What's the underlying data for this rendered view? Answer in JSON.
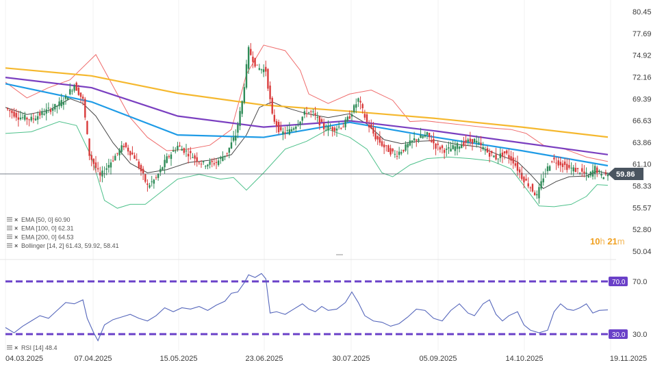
{
  "colors": {
    "up": "#2e8b57",
    "down": "#d93a3a",
    "ema50": "#1e9be6",
    "ema100": "#7a3fc0",
    "ema200": "#f5b82e",
    "bollinger_upper": "#ef6b6b",
    "bollinger_lower": "#4cc08a",
    "bollinger_mid": "#444444",
    "rsi": "#5566bb",
    "rsi_levels": "#6a40c8",
    "price_marker": "#4a5560"
  },
  "timer": {
    "hours": "10",
    "h": "h",
    "minutes": "21",
    "m": "m"
  },
  "legend": [
    {
      "label": "EMA [50, 0] 60.90"
    },
    {
      "label": "EMA [100, 0] 62.31"
    },
    {
      "label": "EMA [200, 0] 64.53"
    },
    {
      "label": "Bollinger [14, 2] 61.43, 59.92, 58.41"
    }
  ],
  "rsi_legend": "RSI [14] 48.4",
  "chart_data": [
    {
      "type": "candlestick",
      "y_ticks": [
        "80.45",
        "77.69",
        "74.92",
        "72.16",
        "69.39",
        "66.63",
        "63.86",
        "61.10",
        "58.33",
        "55.57",
        "52.80",
        "50.04"
      ],
      "ylim": [
        50.04,
        80.45
      ],
      "x_ticks": [
        "04.03.2025",
        "07.04.2025",
        "15.05.2025",
        "23.06.2025",
        "30.07.2025",
        "05.09.2025",
        "14.10.2025",
        "19.11.2025"
      ],
      "last_price": "59.86",
      "close_anchors": [
        [
          0,
          68.2
        ],
        [
          6,
          67.1
        ],
        [
          12,
          66.8
        ],
        [
          18,
          67.7
        ],
        [
          24,
          68.5
        ],
        [
          28,
          69.5
        ],
        [
          32,
          71.2
        ],
        [
          36,
          69.2
        ],
        [
          39,
          62.3
        ],
        [
          44,
          59.5
        ],
        [
          50,
          61.8
        ],
        [
          55,
          63.5
        ],
        [
          60,
          62.0
        ],
        [
          63,
          60.2
        ],
        [
          66,
          58.3
        ],
        [
          70,
          59.3
        ],
        [
          75,
          61.8
        ],
        [
          80,
          63.4
        ],
        [
          86,
          62.3
        ],
        [
          92,
          61.1
        ],
        [
          98,
          61.3
        ],
        [
          103,
          62.6
        ],
        [
          107,
          64.8
        ],
        [
          110,
          69.0
        ],
        [
          113,
          75.6
        ],
        [
          117,
          73.3
        ],
        [
          121,
          73.0
        ],
        [
          124,
          67.2
        ],
        [
          128,
          65.0
        ],
        [
          132,
          65.3
        ],
        [
          136,
          66.4
        ],
        [
          140,
          67.8
        ],
        [
          143,
          67.5
        ],
        [
          148,
          65.7
        ],
        [
          152,
          65.6
        ],
        [
          157,
          66.0
        ],
        [
          160,
          67.2
        ],
        [
          164,
          69.3
        ],
        [
          168,
          66.4
        ],
        [
          172,
          64.5
        ],
        [
          176,
          63.3
        ],
        [
          181,
          62.3
        ],
        [
          185,
          63.0
        ],
        [
          190,
          64.2
        ],
        [
          196,
          64.8
        ],
        [
          200,
          63.4
        ],
        [
          205,
          62.8
        ],
        [
          210,
          63.4
        ],
        [
          214,
          63.9
        ],
        [
          218,
          64.1
        ],
        [
          223,
          62.8
        ],
        [
          228,
          61.9
        ],
        [
          232,
          62.5
        ],
        [
          236,
          61.5
        ],
        [
          240,
          59.5
        ],
        [
          244,
          58.2
        ],
        [
          247,
          57.0
        ],
        [
          250,
          59.5
        ],
        [
          254,
          61.7
        ],
        [
          258,
          61.2
        ],
        [
          262,
          60.6
        ],
        [
          267,
          60.2
        ],
        [
          271,
          59.5
        ],
        [
          274,
          60.6
        ],
        [
          277,
          59.6
        ],
        [
          280,
          59.86
        ]
      ],
      "ema50": [
        [
          0,
          71.3
        ],
        [
          40,
          69.0
        ],
        [
          80,
          64.8
        ],
        [
          120,
          64.5
        ],
        [
          160,
          66.4
        ],
        [
          200,
          64.5
        ],
        [
          240,
          62.8
        ],
        [
          280,
          60.9
        ]
      ],
      "ema100": [
        [
          0,
          72.1
        ],
        [
          40,
          70.8
        ],
        [
          80,
          67.2
        ],
        [
          120,
          65.8
        ],
        [
          160,
          66.6
        ],
        [
          200,
          65.3
        ],
        [
          240,
          63.8
        ],
        [
          280,
          62.31
        ]
      ],
      "ema200": [
        [
          0,
          73.3
        ],
        [
          40,
          72.3
        ],
        [
          80,
          70.1
        ],
        [
          120,
          68.6
        ],
        [
          160,
          67.8
        ],
        [
          200,
          66.9
        ],
        [
          240,
          65.8
        ],
        [
          280,
          64.53
        ]
      ],
      "bollinger_upper": [
        [
          0,
          71.5
        ],
        [
          10,
          69.5
        ],
        [
          20,
          70.8
        ],
        [
          30,
          71.8
        ],
        [
          42,
          75.0
        ],
        [
          50,
          71.0
        ],
        [
          58,
          67.0
        ],
        [
          66,
          64.5
        ],
        [
          75,
          62.8
        ],
        [
          85,
          63.0
        ],
        [
          95,
          63.5
        ],
        [
          105,
          65.5
        ],
        [
          112,
          72.5
        ],
        [
          120,
          76.2
        ],
        [
          130,
          75.5
        ],
        [
          137,
          73.0
        ],
        [
          141,
          70.0
        ],
        [
          150,
          68.8
        ],
        [
          160,
          70.0
        ],
        [
          170,
          70.5
        ],
        [
          180,
          69.2
        ],
        [
          188,
          66.5
        ],
        [
          195,
          66.6
        ],
        [
          205,
          66.3
        ],
        [
          215,
          66.0
        ],
        [
          225,
          65.7
        ],
        [
          235,
          65.5
        ],
        [
          242,
          65.0
        ],
        [
          250,
          63.5
        ],
        [
          260,
          63.0
        ],
        [
          270,
          62.0
        ],
        [
          280,
          61.43
        ]
      ],
      "bollinger_lower": [
        [
          0,
          65.0
        ],
        [
          12,
          65.2
        ],
        [
          25,
          66.5
        ],
        [
          33,
          66.0
        ],
        [
          40,
          62.0
        ],
        [
          46,
          56.5
        ],
        [
          52,
          55.5
        ],
        [
          58,
          56.0
        ],
        [
          65,
          56.0
        ],
        [
          72,
          57.5
        ],
        [
          80,
          59.2
        ],
        [
          90,
          59.8
        ],
        [
          100,
          59.2
        ],
        [
          106,
          59.4
        ],
        [
          112,
          57.8
        ],
        [
          120,
          60.0
        ],
        [
          130,
          63.0
        ],
        [
          140,
          64.0
        ],
        [
          150,
          65.5
        ],
        [
          160,
          64.5
        ],
        [
          168,
          63.0
        ],
        [
          175,
          60.0
        ],
        [
          180,
          59.5
        ],
        [
          188,
          61.0
        ],
        [
          196,
          61.8
        ],
        [
          206,
          62.0
        ],
        [
          216,
          61.8
        ],
        [
          226,
          61.5
        ],
        [
          235,
          60.5
        ],
        [
          242,
          58.0
        ],
        [
          248,
          55.8
        ],
        [
          255,
          55.7
        ],
        [
          263,
          56.0
        ],
        [
          270,
          57.0
        ],
        [
          275,
          58.5
        ],
        [
          280,
          58.41
        ]
      ],
      "bollinger_mid": [
        [
          0,
          68.3
        ],
        [
          10,
          67.4
        ],
        [
          20,
          67.9
        ],
        [
          30,
          69.4
        ],
        [
          36,
          68.8
        ],
        [
          42,
          67.2
        ],
        [
          50,
          63.8
        ],
        [
          58,
          61.2
        ],
        [
          66,
          60.0
        ],
        [
          75,
          60.4
        ],
        [
          85,
          61.3
        ],
        [
          95,
          61.6
        ],
        [
          105,
          62.3
        ],
        [
          112,
          64.8
        ],
        [
          118,
          68.3
        ],
        [
          124,
          69.0
        ],
        [
          130,
          68.3
        ],
        [
          140,
          67.5
        ],
        [
          150,
          67.0
        ],
        [
          160,
          67.5
        ],
        [
          168,
          66.2
        ],
        [
          176,
          64.2
        ],
        [
          184,
          63.7
        ],
        [
          192,
          64.0
        ],
        [
          200,
          64.1
        ],
        [
          210,
          63.6
        ],
        [
          220,
          63.3
        ],
        [
          230,
          62.2
        ],
        [
          238,
          61.4
        ],
        [
          244,
          59.8
        ],
        [
          250,
          58.0
        ],
        [
          256,
          58.9
        ],
        [
          262,
          59.5
        ],
        [
          270,
          59.6
        ],
        [
          275,
          60.2
        ],
        [
          280,
          59.92
        ]
      ]
    },
    {
      "type": "line",
      "name": "RSI [14]",
      "y_levels": [
        "70.0",
        "30.0"
      ],
      "ylim": [
        25,
        81
      ],
      "values": [
        [
          0,
          35
        ],
        [
          4,
          31
        ],
        [
          8,
          36
        ],
        [
          12,
          40
        ],
        [
          16,
          44
        ],
        [
          20,
          42
        ],
        [
          24,
          48
        ],
        [
          28,
          54
        ],
        [
          32,
          53
        ],
        [
          36,
          56
        ],
        [
          38,
          42
        ],
        [
          41,
          31
        ],
        [
          43,
          25
        ],
        [
          46,
          37
        ],
        [
          50,
          41
        ],
        [
          54,
          43
        ],
        [
          58,
          45
        ],
        [
          62,
          42
        ],
        [
          66,
          40
        ],
        [
          70,
          44
        ],
        [
          74,
          50
        ],
        [
          78,
          47
        ],
        [
          82,
          50
        ],
        [
          86,
          49
        ],
        [
          90,
          51
        ],
        [
          94,
          48
        ],
        [
          98,
          52
        ],
        [
          102,
          55
        ],
        [
          105,
          61
        ],
        [
          108,
          62
        ],
        [
          111,
          69
        ],
        [
          113,
          75
        ],
        [
          116,
          73
        ],
        [
          119,
          76
        ],
        [
          121,
          72
        ],
        [
          123,
          46
        ],
        [
          126,
          47
        ],
        [
          130,
          45
        ],
        [
          134,
          49
        ],
        [
          138,
          53
        ],
        [
          141,
          49
        ],
        [
          144,
          47
        ],
        [
          147,
          51
        ],
        [
          150,
          48
        ],
        [
          154,
          49
        ],
        [
          158,
          54
        ],
        [
          161,
          62
        ],
        [
          164,
          54
        ],
        [
          167,
          44
        ],
        [
          171,
          40
        ],
        [
          175,
          39
        ],
        [
          179,
          36
        ],
        [
          183,
          38
        ],
        [
          187,
          43
        ],
        [
          191,
          49
        ],
        [
          195,
          48
        ],
        [
          199,
          42
        ],
        [
          203,
          40
        ],
        [
          207,
          48
        ],
        [
          211,
          53
        ],
        [
          215,
          46
        ],
        [
          218,
          44
        ],
        [
          222,
          53
        ],
        [
          225,
          56
        ],
        [
          228,
          45
        ],
        [
          231,
          40
        ],
        [
          234,
          44
        ],
        [
          238,
          47
        ],
        [
          241,
          37
        ],
        [
          244,
          33
        ],
        [
          248,
          31
        ],
        [
          252,
          33
        ],
        [
          255,
          47
        ],
        [
          258,
          53
        ],
        [
          261,
          49
        ],
        [
          264,
          48
        ],
        [
          267,
          50
        ],
        [
          270,
          53
        ],
        [
          273,
          46
        ],
        [
          276,
          48
        ],
        [
          280,
          48.4
        ]
      ]
    }
  ]
}
